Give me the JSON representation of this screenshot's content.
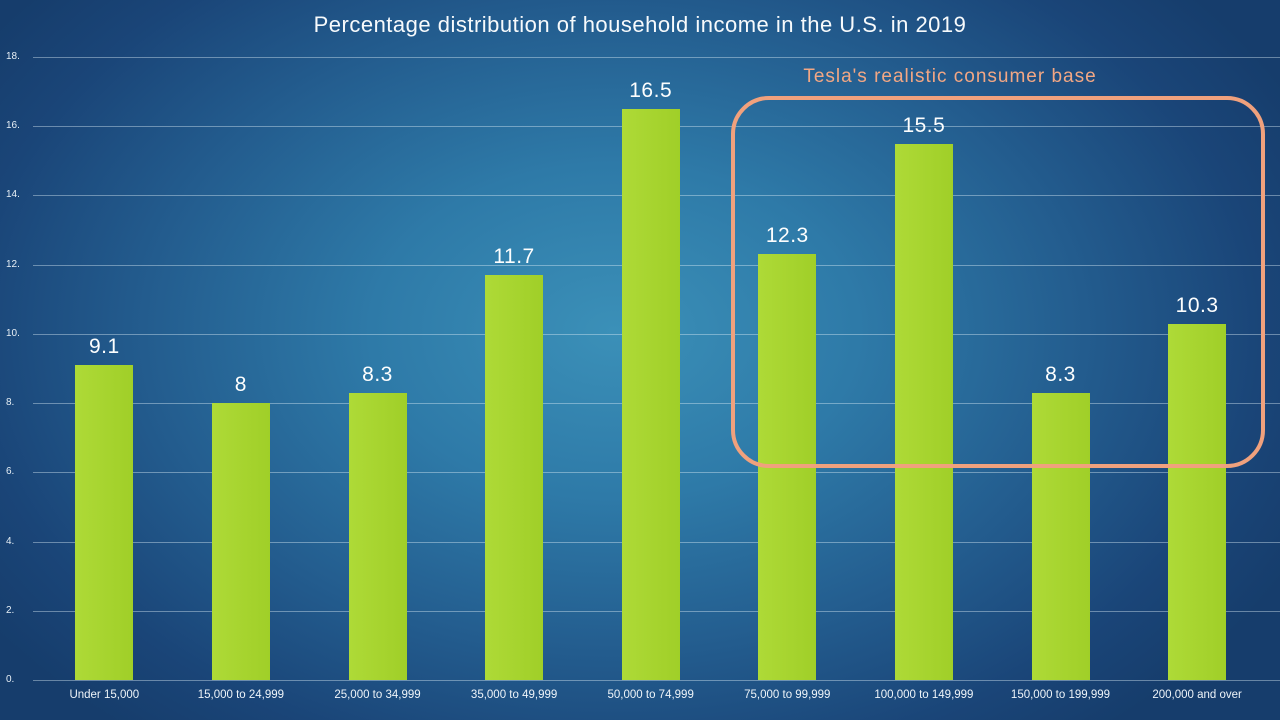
{
  "chart_data": {
    "type": "bar",
    "title": "Percentage distribution of household income in the U.S. in 2019",
    "categories": [
      "Under 15,000",
      "15,000 to 24,999",
      "25,000 to 34,999",
      "35,000 to 49,999",
      "50,000 to 74,999",
      "75,000 to 99,999",
      "100,000 to 149,999",
      "150,000 to 199,999",
      "200,000 and over"
    ],
    "values": [
      9.1,
      8,
      8.3,
      11.7,
      16.5,
      12.3,
      15.5,
      8.3,
      10.3
    ],
    "value_labels": [
      "9.1",
      "8",
      "8.3",
      "11.7",
      "16.5",
      "12.3",
      "15.5",
      "8.3",
      "10.3"
    ],
    "xlabel": "",
    "ylabel": "",
    "ylim": [
      0,
      18
    ],
    "ytick_step": 2,
    "ytick_labels": [
      "0.",
      "2.",
      "4.",
      "6.",
      "8.",
      "10.",
      "12.",
      "14.",
      "16.",
      "18."
    ],
    "grid": true,
    "legend": "none",
    "annotation": {
      "label": "Tesla's realistic consumer base",
      "from_category_index": 5,
      "to_category_index": 8
    },
    "colors": {
      "bar": "#a5d32e",
      "annotation": "#f0a17d",
      "title_text": "#f7fafc",
      "value_label_text": "#fdfefe",
      "axis_label_text": "#eef4f9",
      "gridline": "rgba(220,235,245,0.42)",
      "background_center": "#3b90b8",
      "background_edge": "#163d6c"
    }
  }
}
